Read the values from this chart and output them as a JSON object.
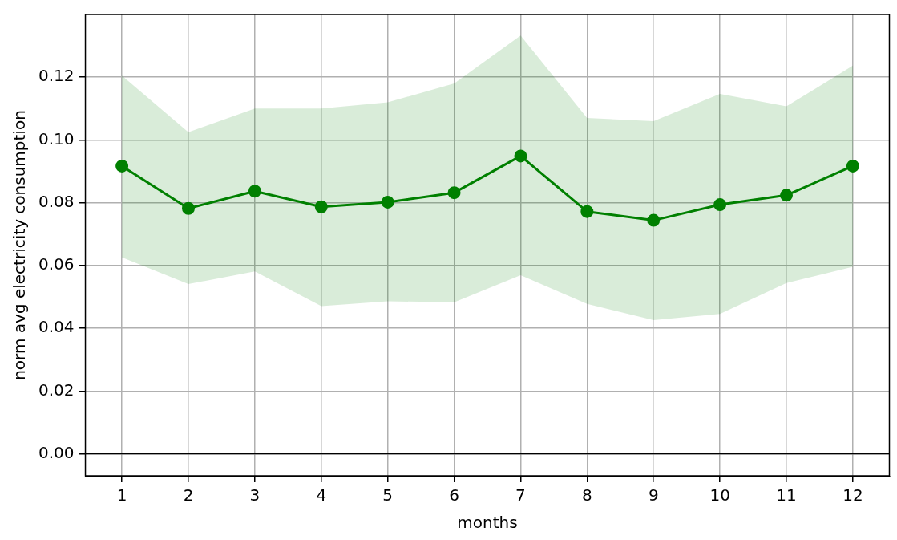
{
  "chart_data": {
    "type": "line",
    "xlabel": "months",
    "ylabel": "norm avg electricity consumption",
    "x": [
      1,
      2,
      3,
      4,
      5,
      6,
      7,
      8,
      9,
      10,
      11,
      12
    ],
    "series": [
      {
        "color": "#008000",
        "values": [
          0.0917,
          0.0782,
          0.0837,
          0.0787,
          0.0802,
          0.0832,
          0.0949,
          0.0772,
          0.0744,
          0.0794,
          0.0824,
          0.0917
        ],
        "lower": [
          0.0626,
          0.0541,
          0.0581,
          0.0471,
          0.0486,
          0.0483,
          0.0569,
          0.0478,
          0.0426,
          0.0446,
          0.0544,
          0.0596
        ],
        "upper": [
          0.1205,
          0.1025,
          0.11,
          0.11,
          0.112,
          0.118,
          0.1333,
          0.107,
          0.106,
          0.1147,
          0.1107,
          0.1237
        ]
      }
    ],
    "xlim": [
      0.45,
      12.55
    ],
    "xticks": [
      1,
      2,
      3,
      4,
      5,
      6,
      7,
      8,
      9,
      10,
      11,
      12
    ],
    "ylim": [
      -0.007,
      0.14
    ],
    "yticks": [
      {
        "value": 0,
        "label": "0.00"
      },
      {
        "value": 0.02,
        "label": "0.02"
      },
      {
        "value": 0.04,
        "label": "0.04"
      },
      {
        "value": 0.06,
        "label": "0.06"
      },
      {
        "value": 0.08,
        "label": "0.08"
      },
      {
        "value": 0.1,
        "label": "0.10"
      },
      {
        "value": 0.12,
        "label": "0.12"
      }
    ],
    "ref_lines": [
      {
        "axis": "y",
        "value": 0,
        "color": "#000000"
      }
    ],
    "grid": true,
    "marker": "circle",
    "line_style": "solid",
    "legend": false
  }
}
